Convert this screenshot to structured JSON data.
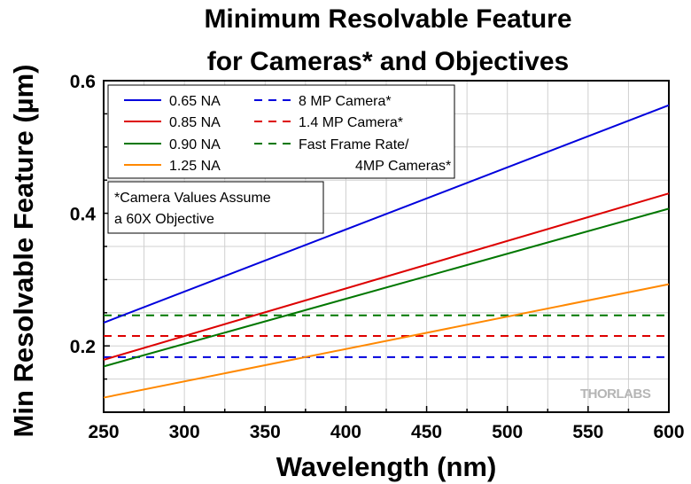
{
  "chart_data": {
    "type": "line",
    "title_lines": [
      "Minimum Resolvable Feature",
      "for Cameras* and Objectives"
    ],
    "xlabel": "Wavelength (nm)",
    "ylabel": "Min Resolvable Feature (µm)",
    "xlim": [
      250,
      600
    ],
    "ylim": [
      0.1,
      0.6
    ],
    "xticks": [
      250,
      300,
      350,
      400,
      450,
      500,
      550,
      600
    ],
    "yticks": [
      {
        "value": 0.2,
        "label": "0.2"
      },
      {
        "value": 0.4,
        "label": "0.4"
      },
      {
        "value": 0.6,
        "label": "0.6"
      }
    ],
    "x_minor_step": 25,
    "y_minor_step": 0.05,
    "grid": true,
    "legend_position": "top-left",
    "series": [
      {
        "name": "0.65 NA",
        "color": "#0000dd",
        "dashed": false,
        "x": [
          250,
          600
        ],
        "y": [
          0.235,
          0.563
        ]
      },
      {
        "name": "0.85 NA",
        "color": "#dd0000",
        "dashed": false,
        "x": [
          250,
          600
        ],
        "y": [
          0.179,
          0.43
        ]
      },
      {
        "name": "0.90 NA",
        "color": "#007700",
        "dashed": false,
        "x": [
          250,
          600
        ],
        "y": [
          0.169,
          0.407
        ]
      },
      {
        "name": "1.25 NA",
        "color": "#ff8800",
        "dashed": false,
        "x": [
          250,
          600
        ],
        "y": [
          0.122,
          0.293
        ]
      },
      {
        "name": "8 MP Camera*",
        "color": "#0000dd",
        "dashed": true,
        "x": [
          250,
          600
        ],
        "y": [
          0.183,
          0.183
        ]
      },
      {
        "name": "1.4 MP Camera*",
        "color": "#dd0000",
        "dashed": true,
        "x": [
          250,
          600
        ],
        "y": [
          0.215,
          0.215
        ]
      },
      {
        "name": "Fast Frame Rate/",
        "name_line2": "4MP Cameras*",
        "color": "#007700",
        "dashed": true,
        "x": [
          250,
          600
        ],
        "y": [
          0.246,
          0.246
        ]
      }
    ],
    "annotation_lines": [
      "*Camera Values Assume",
      "a 60X Objective"
    ],
    "logo_text": "THORLABS"
  }
}
